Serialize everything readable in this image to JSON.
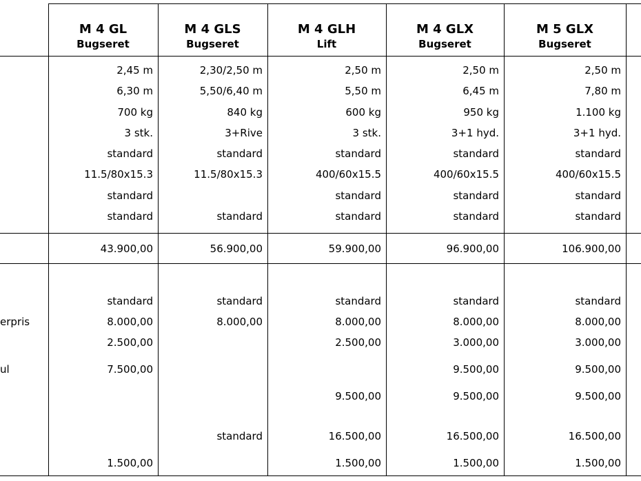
{
  "table": {
    "columns": [
      {
        "model": "M 4 GL",
        "type": "Bugseret"
      },
      {
        "model": "M 4 GLS",
        "type": "Bugseret"
      },
      {
        "model": "M 4 GLH",
        "type": "Lift"
      },
      {
        "model": "M 4 GLX",
        "type": "Bugseret"
      },
      {
        "model": "M 5 GLX",
        "type": "Bugseret"
      }
    ],
    "spec_rows": [
      [
        "2,45 m",
        "2,30/2,50 m",
        "2,50 m",
        "2,50 m",
        "2,50 m"
      ],
      [
        "6,30 m",
        "5,50/6,40 m",
        "5,50 m",
        "6,45 m",
        "7,80 m"
      ],
      [
        "700 kg",
        "840 kg",
        "600 kg",
        "950 kg",
        "1.100 kg"
      ],
      [
        "3 stk.",
        "3+Rive",
        "3 stk.",
        "3+1 hyd.",
        "3+1 hyd."
      ],
      [
        "standard",
        "standard",
        "standard",
        "standard",
        "standard"
      ],
      [
        "11.5/80x15.3",
        "11.5/80x15.3",
        "400/60x15.5",
        "400/60x15.5",
        "400/60x15.5"
      ],
      [
        "standard",
        null,
        "standard",
        "standard",
        "standard"
      ],
      [
        "standard",
        "standard",
        "standard",
        "standard",
        "standard"
      ]
    ],
    "price_row": [
      "43.900,00",
      "56.900,00",
      "59.900,00",
      "96.900,00",
      "106.900,00"
    ],
    "option_rows": [
      {
        "cells": [
          "standard",
          "standard",
          "standard",
          "standard",
          "standard"
        ]
      },
      {
        "label": "erpris",
        "cells": [
          "8.000,00",
          "8.000,00",
          "8.000,00",
          "8.000,00",
          "8.000,00"
        ]
      },
      {
        "cells": [
          "2.500,00",
          null,
          "2.500,00",
          "3.000,00",
          "3.000,00"
        ]
      },
      {
        "label": "ul",
        "cells": [
          "7.500,00",
          null,
          null,
          "9.500,00",
          "9.500,00"
        ]
      },
      {
        "cells": [
          null,
          null,
          "9.500,00",
          "9.500,00",
          "9.500,00"
        ]
      },
      {
        "cells": [
          null,
          "standard",
          "16.500,00",
          "16.500,00",
          "16.500,00"
        ]
      },
      {
        "cells": [
          "1.500,00",
          null,
          "1.500,00",
          "1.500,00",
          "1.500,00"
        ]
      }
    ]
  }
}
